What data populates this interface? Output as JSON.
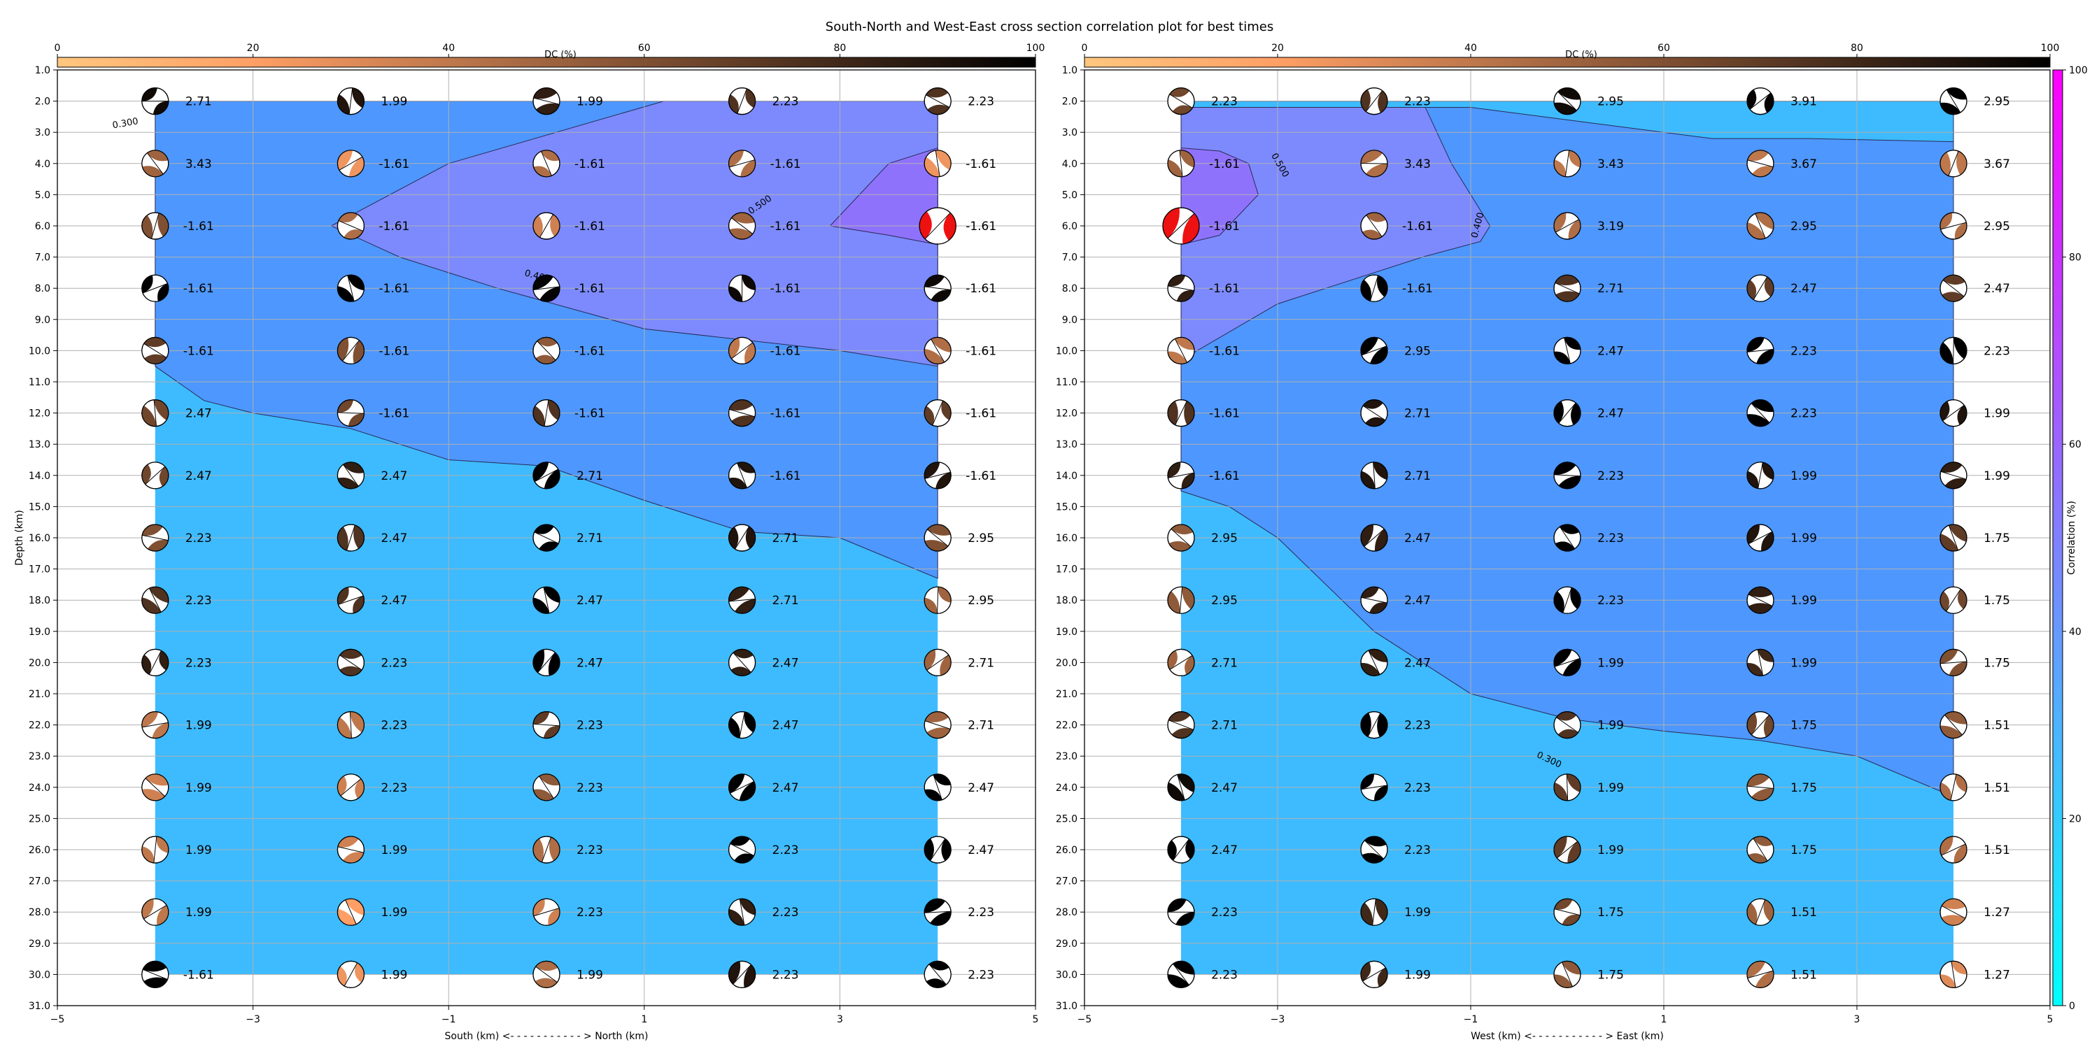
{
  "title": "South-North and West-East cross section correlation plot for best times",
  "colors": {
    "best_mt_fill": "#ee1111",
    "contour_line": "#2a2a55",
    "grid": "#b0b0b0"
  },
  "dc_colorbar": {
    "label": "DC (%)",
    "ticks": [
      0,
      20,
      40,
      60,
      80,
      100
    ],
    "cmap": "copper_r"
  },
  "corr_colorbar": {
    "label": "Correlation (%)",
    "ticks": [
      0,
      20,
      40,
      60,
      80,
      100
    ],
    "cmap": "cool"
  },
  "chart_data": [
    {
      "type": "heatmap",
      "title": "",
      "xlabel": "South (km) <- - - - - - - - - - - > North (km)",
      "ylabel": "Depth (km)",
      "xlim": [
        -5,
        5
      ],
      "ylim": [
        31,
        1
      ],
      "x_ticks": [
        -5,
        -3,
        -1,
        1,
        3,
        5
      ],
      "y_ticks": [
        1,
        2,
        3,
        4,
        5,
        6,
        7,
        8,
        9,
        10,
        11,
        12,
        13,
        14,
        15,
        16,
        17,
        18,
        19,
        20,
        21,
        22,
        23,
        24,
        25,
        26,
        27,
        28,
        29,
        30,
        31
      ],
      "grid": true,
      "x": [
        -4,
        -2,
        0,
        2,
        4
      ],
      "depths": [
        2,
        4,
        6,
        8,
        10,
        12,
        14,
        16,
        18,
        20,
        22,
        24,
        26,
        28,
        30
      ],
      "values": [
        [
          "2.71",
          "1.99",
          "1.99",
          "2.23",
          "2.23"
        ],
        [
          "3.43",
          "-1.61",
          "-1.61",
          "-1.61",
          "-1.61"
        ],
        [
          "-1.61",
          "-1.61",
          "-1.61",
          "-1.61",
          "-1.61"
        ],
        [
          "-1.61",
          "-1.61",
          "-1.61",
          "-1.61",
          "-1.61"
        ],
        [
          "-1.61",
          "-1.61",
          "-1.61",
          "-1.61",
          "-1.61"
        ],
        [
          "2.47",
          "-1.61",
          "-1.61",
          "-1.61",
          "-1.61"
        ],
        [
          "2.47",
          "2.47",
          "2.71",
          "-1.61",
          "-1.61"
        ],
        [
          "2.23",
          "2.47",
          "2.71",
          "2.71",
          "2.95"
        ],
        [
          "2.23",
          "2.47",
          "2.47",
          "2.71",
          "2.95"
        ],
        [
          "2.23",
          "2.23",
          "2.47",
          "2.47",
          "2.71"
        ],
        [
          "1.99",
          "2.23",
          "2.23",
          "2.47",
          "2.71"
        ],
        [
          "1.99",
          "2.23",
          "2.23",
          "2.47",
          "2.47"
        ],
        [
          "1.99",
          "1.99",
          "2.23",
          "2.23",
          "2.47"
        ],
        [
          "1.99",
          "1.99",
          "2.23",
          "2.23",
          "2.23"
        ],
        [
          "-1.61",
          "1.99",
          "1.99",
          "2.23",
          "2.23"
        ]
      ],
      "dc_percent": [
        [
          95,
          90,
          85,
          75,
          75
        ],
        [
          50,
          25,
          45,
          45,
          25
        ],
        [
          60,
          45,
          35,
          50,
          95
        ],
        [
          100,
          100,
          98,
          96,
          96
        ],
        [
          70,
          60,
          55,
          40,
          45
        ],
        [
          65,
          65,
          75,
          75,
          70
        ],
        [
          65,
          85,
          100,
          90,
          90
        ],
        [
          60,
          75,
          100,
          90,
          60
        ],
        [
          75,
          75,
          100,
          85,
          50
        ],
        [
          85,
          75,
          100,
          85,
          50
        ],
        [
          40,
          40,
          70,
          100,
          50
        ],
        [
          35,
          35,
          55,
          100,
          100
        ],
        [
          40,
          35,
          45,
          100,
          100
        ],
        [
          40,
          20,
          35,
          85,
          100
        ],
        [
          100,
          25,
          45,
          90,
          100
        ]
      ],
      "correlation_bands": {
        "levels": [
          "0.300",
          "0.400",
          "0.500"
        ],
        "fills": [
          "#3dbbfe",
          "#4d97fe",
          "#7c8afe",
          "#8f72fc"
        ]
      },
      "best_solution": {
        "x": 4,
        "depth": 6
      }
    },
    {
      "type": "heatmap",
      "title": "",
      "xlabel": "West (km) <- - - - - - - - - - - > East (km)",
      "ylabel": "",
      "xlim": [
        -5,
        5
      ],
      "ylim": [
        31,
        1
      ],
      "x_ticks": [
        -5,
        -3,
        -1,
        1,
        3,
        5
      ],
      "y_ticks": [
        1,
        2,
        3,
        4,
        5,
        6,
        7,
        8,
        9,
        10,
        11,
        12,
        13,
        14,
        15,
        16,
        17,
        18,
        19,
        20,
        21,
        22,
        23,
        24,
        25,
        26,
        27,
        28,
        29,
        30,
        31
      ],
      "grid": true,
      "x": [
        -4,
        -2,
        0,
        2,
        4
      ],
      "depths": [
        2,
        4,
        6,
        8,
        10,
        12,
        14,
        16,
        18,
        20,
        22,
        24,
        26,
        28,
        30
      ],
      "values": [
        [
          "2.23",
          "2.23",
          "2.95",
          "3.91",
          "2.95"
        ],
        [
          "-1.61",
          "3.43",
          "3.43",
          "3.67",
          "3.67"
        ],
        [
          "-1.61",
          "-1.61",
          "3.19",
          "2.95",
          "2.95"
        ],
        [
          "-1.61",
          "-1.61",
          "2.71",
          "2.47",
          "2.47"
        ],
        [
          "-1.61",
          "2.95",
          "2.47",
          "2.23",
          "2.23"
        ],
        [
          "-1.61",
          "2.71",
          "2.47",
          "2.23",
          "1.99"
        ],
        [
          "-1.61",
          "2.71",
          "2.23",
          "1.99",
          "1.99"
        ],
        [
          "2.95",
          "2.47",
          "2.23",
          "1.99",
          "1.75"
        ],
        [
          "2.95",
          "2.47",
          "2.23",
          "1.99",
          "1.75"
        ],
        [
          "2.71",
          "2.47",
          "1.99",
          "1.99",
          "1.75"
        ],
        [
          "2.71",
          "2.23",
          "1.99",
          "1.75",
          "1.51"
        ],
        [
          "2.47",
          "2.23",
          "1.99",
          "1.75",
          "1.51"
        ],
        [
          "2.47",
          "2.23",
          "1.99",
          "1.75",
          "1.51"
        ],
        [
          "2.23",
          "1.99",
          "1.75",
          "1.51",
          "1.27"
        ],
        [
          "2.23",
          "1.99",
          "1.75",
          "1.51",
          "1.27"
        ]
      ],
      "dc_percent": [
        [
          65,
          75,
          95,
          98,
          100
        ],
        [
          50,
          45,
          40,
          40,
          40
        ],
        [
          95,
          50,
          45,
          45,
          45
        ],
        [
          85,
          100,
          75,
          70,
          70
        ],
        [
          40,
          100,
          100,
          100,
          100
        ],
        [
          75,
          90,
          100,
          100,
          90
        ],
        [
          85,
          90,
          100,
          90,
          85
        ],
        [
          55,
          85,
          100,
          90,
          70
        ],
        [
          55,
          85,
          100,
          85,
          65
        ],
        [
          50,
          85,
          100,
          80,
          60
        ],
        [
          75,
          100,
          75,
          65,
          55
        ],
        [
          95,
          100,
          70,
          55,
          45
        ],
        [
          100,
          100,
          70,
          55,
          45
        ],
        [
          100,
          80,
          65,
          50,
          35
        ],
        [
          100,
          80,
          55,
          45,
          30
        ]
      ],
      "correlation_bands": {
        "levels": [
          "0.300",
          "0.400",
          "0.500"
        ],
        "fills": [
          "#3dbbfe",
          "#4d97fe",
          "#7c8afe",
          "#8f72fc"
        ]
      },
      "best_solution": {
        "x": -4,
        "depth": 6
      }
    }
  ]
}
